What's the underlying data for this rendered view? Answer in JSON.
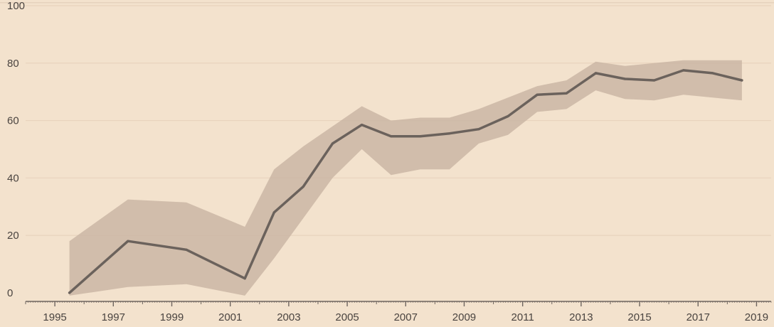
{
  "chart_data": {
    "type": "line",
    "title": "",
    "xlabel": "",
    "ylabel": "",
    "xlim": [
      1994.0,
      2019.5
    ],
    "ylim": [
      -3,
      100
    ],
    "grid": true,
    "legend": "none",
    "colors": {
      "background": "#f3e2cd",
      "line": "#6b625c",
      "band": "#c8b4a3",
      "grid": "#e8d3bd",
      "axis": "#6e655f",
      "text": "#4a4440"
    },
    "x_ticks": [
      "1995",
      "1997",
      "1999",
      "2001",
      "2003",
      "2005",
      "2007",
      "2009",
      "2011",
      "2013",
      "2015",
      "2017",
      "2019"
    ],
    "y_ticks": [
      "0",
      "20",
      "40",
      "60",
      "80",
      "100"
    ],
    "series": [
      {
        "x": [
          1995.5,
          1997.5,
          1999.5,
          2001.5,
          2002.5,
          2003.5,
          2004.5,
          2005.5,
          2006.5,
          2007.5,
          2008.5,
          2009.5,
          2010.5,
          2011.5,
          2012.5,
          2013.5,
          2014.5,
          2015.5,
          2016.5,
          2017.5,
          2018.5
        ],
        "y": [
          0,
          18,
          15,
          5,
          28,
          37,
          52,
          58.5,
          54.5,
          54.5,
          55.5,
          57,
          61.5,
          69,
          69.5,
          76.5,
          74.5,
          74,
          77.5,
          76.5,
          74
        ],
        "lower": [
          -1,
          2,
          3,
          -1,
          12,
          26,
          40,
          50,
          41,
          43,
          43,
          52,
          55,
          63,
          64,
          70.5,
          67.5,
          67,
          69,
          68,
          67
        ],
        "upper": [
          18,
          32.5,
          31.5,
          23,
          43,
          51,
          58,
          65,
          60,
          61,
          61,
          64,
          68,
          72,
          74,
          80.5,
          79,
          80,
          81,
          81,
          81
        ]
      }
    ]
  }
}
